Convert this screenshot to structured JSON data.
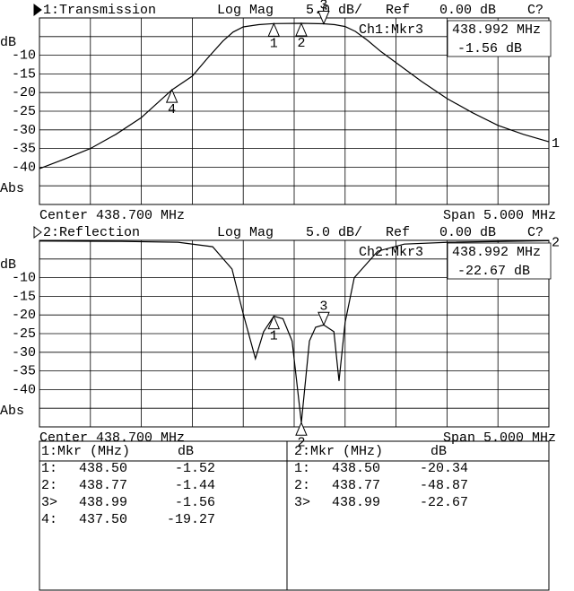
{
  "chart_data": [
    {
      "type": "line",
      "title": "1:Transmission",
      "active": true,
      "format": "Log Mag",
      "scale": "5.0 dB/",
      "ref_label": "Ref",
      "ref": "0.00 dB",
      "status": "C?",
      "y_unit": "dB",
      "y_mode": "Abs",
      "center": "Center 438.700 MHz",
      "span": "Span 5.000 MHz",
      "readout": {
        "channel": "Ch1:Mkr3",
        "freq": "438.992 MHz",
        "value": "-1.56 dB"
      },
      "xlim": [
        436.2,
        441.2
      ],
      "ylim": [
        -50,
        0
      ],
      "yticks": [
        -10,
        -15,
        -20,
        -25,
        -30,
        -35,
        -40
      ],
      "divisions": 10,
      "grid": true,
      "color": "#000000",
      "trace_label": "1",
      "series": [
        {
          "x": [
            436.2,
            436.45,
            436.7,
            436.95,
            437.2,
            437.5,
            437.7,
            437.85,
            438.0,
            438.1,
            438.2,
            438.35,
            438.5,
            438.77,
            438.99,
            439.1,
            439.2,
            439.3,
            439.42,
            439.55,
            439.7,
            439.95,
            440.2,
            440.45,
            440.7,
            440.95,
            441.2
          ],
          "values": [
            -40.4,
            -37.8,
            -35,
            -31.2,
            -26.7,
            -19.27,
            -15.6,
            -10.8,
            -6.2,
            -3.8,
            -2.4,
            -1.8,
            -1.52,
            -1.44,
            -1.56,
            -1.8,
            -2.3,
            -3.6,
            -6,
            -9,
            -12,
            -17,
            -21.6,
            -25.4,
            -28.8,
            -31.2,
            -33.2
          ]
        }
      ],
      "markers": [
        {
          "label": "1",
          "x": 438.5,
          "y": -1.52
        },
        {
          "label": "2",
          "x": 438.77,
          "y": -1.44
        },
        {
          "label": "3",
          "x": 438.99,
          "y": -1.56,
          "active": true
        },
        {
          "label": "4",
          "x": 437.5,
          "y": -19.27
        }
      ]
    },
    {
      "type": "line",
      "title": "2:Reflection",
      "active": false,
      "format": "Log Mag",
      "scale": "5.0 dB/",
      "ref_label": "Ref",
      "ref": "0.00 dB",
      "status": "C?",
      "y_unit": "dB",
      "y_mode": "Abs",
      "center": "Center 438.700 MHz",
      "span": "Span 5.000 MHz",
      "readout": {
        "channel": "Ch2:Mkr3",
        "freq": "438.992 MHz",
        "value": "-22.67 dB"
      },
      "xlim": [
        436.2,
        441.2
      ],
      "ylim": [
        -50,
        0
      ],
      "yticks": [
        -10,
        -15,
        -20,
        -25,
        -30,
        -35,
        -40
      ],
      "divisions": 10,
      "grid": true,
      "color": "#000000",
      "trace_label": "2",
      "series": [
        {
          "x": [
            436.2,
            437.0,
            437.56,
            437.9,
            438.09,
            438.2,
            438.32,
            438.4,
            438.5,
            438.59,
            438.68,
            438.77,
            438.85,
            438.91,
            438.99,
            439.09,
            439.14,
            439.2,
            439.29,
            439.52,
            439.78,
            440.22,
            441.2
          ],
          "values": [
            -0.2,
            -0.3,
            -0.5,
            -1.7,
            -7.7,
            -19.7,
            -31.7,
            -24.5,
            -20.34,
            -21,
            -27,
            -48.87,
            -27,
            -23.3,
            -22.67,
            -24.5,
            -37.7,
            -22,
            -10,
            -2.9,
            -1,
            -0.5,
            -0.1
          ]
        }
      ],
      "markers": [
        {
          "label": "1",
          "x": 438.5,
          "y": -20.34
        },
        {
          "label": "2",
          "x": 438.77,
          "y": -48.87
        },
        {
          "label": "3",
          "x": 438.99,
          "y": -22.67,
          "active": true
        }
      ]
    }
  ],
  "marker_tables": [
    {
      "title": "1:Mkr (MHz)",
      "unit": "dB",
      "rows": [
        [
          "1:",
          "438.50",
          "-1.52"
        ],
        [
          "2:",
          "438.77",
          "-1.44"
        ],
        [
          "3>",
          "438.99",
          "-1.56"
        ],
        [
          "4:",
          "437.50",
          "-19.27"
        ]
      ]
    },
    {
      "title": "2:Mkr (MHz)",
      "unit": "dB",
      "rows": [
        [
          "1:",
          "438.50",
          "-20.34"
        ],
        [
          "2:",
          "438.77",
          "-48.87"
        ],
        [
          "3>",
          "438.99",
          "-22.67"
        ]
      ]
    }
  ]
}
